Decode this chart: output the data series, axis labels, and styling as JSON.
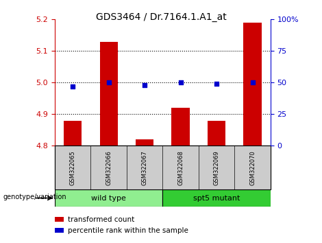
{
  "title": "GDS3464 / Dr.7164.1.A1_at",
  "samples": [
    "GSM322065",
    "GSM322066",
    "GSM322067",
    "GSM322068",
    "GSM322069",
    "GSM322070"
  ],
  "transformed_count": [
    4.88,
    5.13,
    4.82,
    4.92,
    4.88,
    5.19
  ],
  "percentile_rank": [
    47,
    50,
    48,
    50,
    49,
    50
  ],
  "bar_color": "#cc0000",
  "dot_color": "#0000cc",
  "ylim_left": [
    4.8,
    5.2
  ],
  "ylim_right": [
    0,
    100
  ],
  "yticks_left": [
    4.8,
    4.9,
    5.0,
    5.1,
    5.2
  ],
  "yticks_right": [
    0,
    25,
    50,
    75,
    100
  ],
  "ytick_labels_right": [
    "0",
    "25",
    "50",
    "75",
    "100%"
  ],
  "grid_ticks": [
    4.9,
    5.0,
    5.1
  ],
  "groups": [
    {
      "label": "wild type",
      "samples": [
        0,
        1,
        2
      ],
      "color": "#90ee90"
    },
    {
      "label": "spt5 mutant",
      "samples": [
        3,
        4,
        5
      ],
      "color": "#33cc33"
    }
  ],
  "genotype_label": "genotype/variation",
  "legend_items": [
    {
      "color": "#cc0000",
      "label": "transformed count"
    },
    {
      "color": "#0000cc",
      "label": "percentile rank within the sample"
    }
  ],
  "bar_width": 0.5,
  "sample_box_color": "#cccccc",
  "title_fontsize": 10,
  "axis_label_color_left": "#cc0000",
  "axis_label_color_right": "#0000cc"
}
